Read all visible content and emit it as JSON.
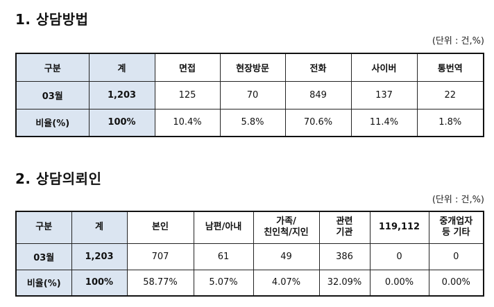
{
  "section1": {
    "title": "1. 상담방법",
    "unit": "(단위 : 건,%)",
    "headers": [
      "구분",
      "계",
      "면접",
      "현장방문",
      "전화",
      "사이버",
      "통번역"
    ],
    "rows": [
      [
        "03월",
        "1,203",
        "125",
        "70",
        "849",
        "137",
        "22"
      ],
      [
        "비율(%)",
        "100%",
        "10.4%",
        "5.8%",
        "70.6%",
        "11.4%",
        "1.8%"
      ]
    ]
  },
  "section2": {
    "title": "2. 상담의뢰인",
    "unit": "(단위 : 건,%)",
    "headers": [
      [
        "구분"
      ],
      [
        "계"
      ],
      [
        "본인"
      ],
      [
        "남편/아내"
      ],
      [
        "가족/",
        "친인척/지인"
      ],
      [
        "관련",
        "기관"
      ],
      [
        "119,112"
      ],
      [
        "중개업자",
        "등 기타"
      ]
    ],
    "rows": [
      [
        "03월",
        "1,203",
        "707",
        "61",
        "49",
        "386",
        "0",
        "0"
      ],
      [
        "비율(%)",
        "100%",
        "58.77%",
        "5.07%",
        "4.07%",
        "32.09%",
        "0.00%",
        "0.00%"
      ]
    ]
  }
}
